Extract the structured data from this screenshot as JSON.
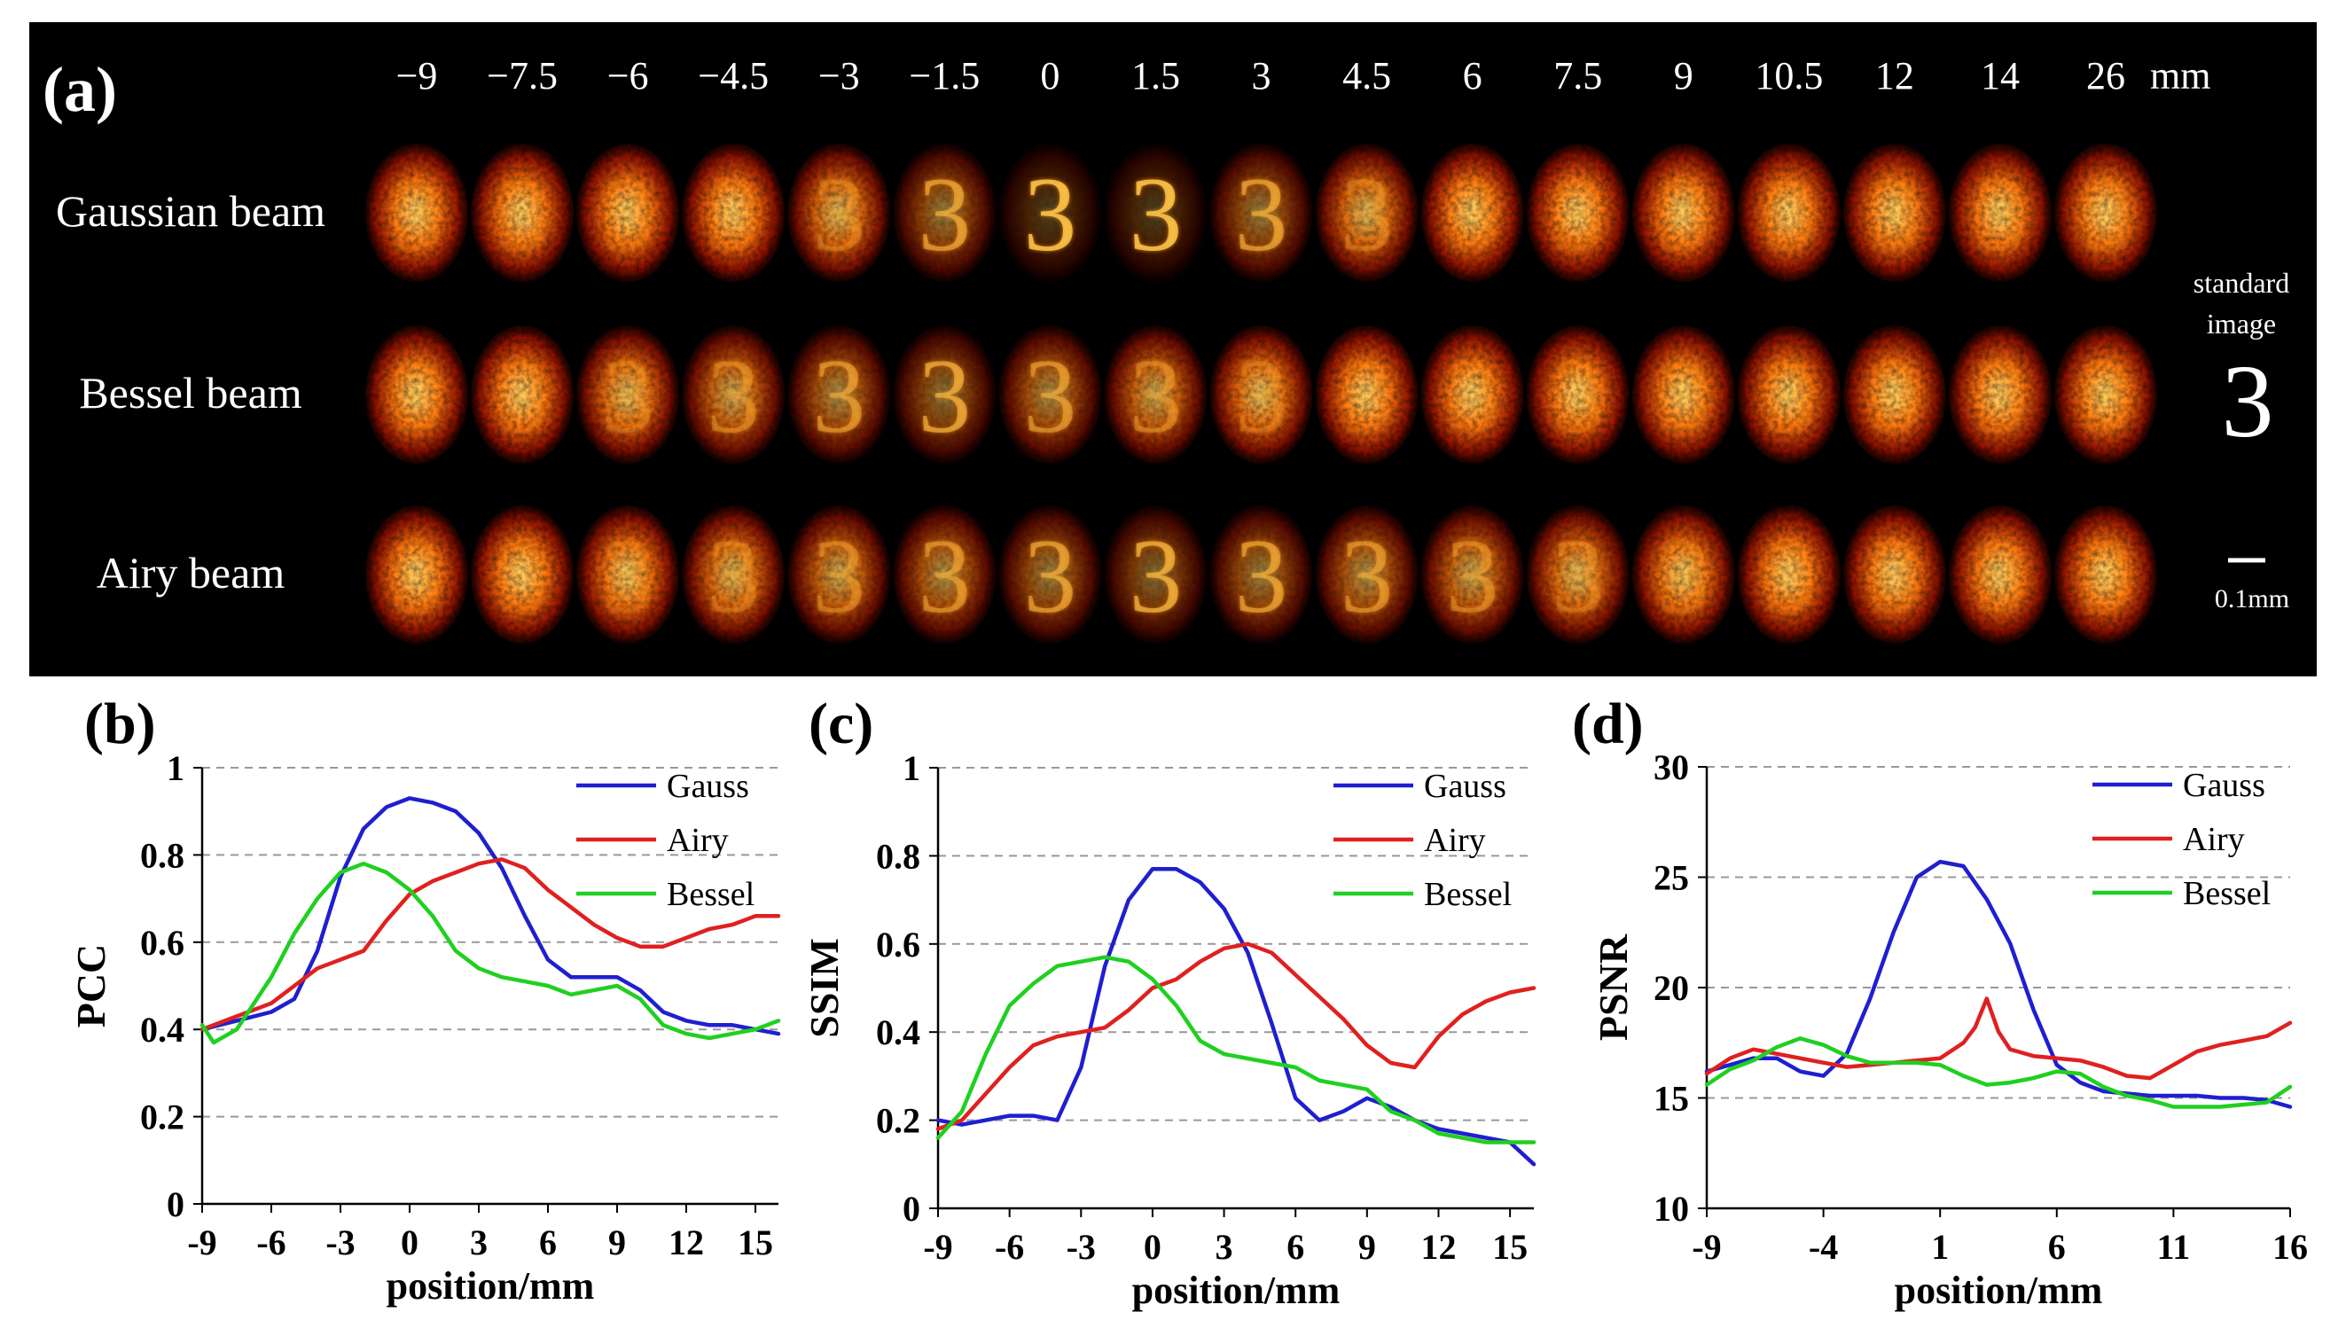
{
  "panel_a": {
    "label": "(a)",
    "positions": [
      "−9",
      "−7.5",
      "−6",
      "−4.5",
      "−3",
      "−1.5",
      "0",
      "1.5",
      "3",
      "4.5",
      "6",
      "7.5",
      "9",
      "10.5",
      "12",
      "14",
      "26"
    ],
    "unit": "mm",
    "rows": [
      "Gaussian beam",
      "Bessel beam",
      "Airy beam"
    ],
    "standard_label_1": "standard",
    "standard_label_2": "image",
    "standard_glyph": "3",
    "scale_bar_label": "0.1mm",
    "image_glyph": "3",
    "colors": {
      "background": "#000000",
      "hot_core": "#ffe070",
      "hot_mid": "#ff7a10",
      "hot_edge": "#b01500"
    }
  },
  "chart_data": [
    {
      "type": "line",
      "panel_label": "(b)",
      "xlabel": "position/mm",
      "ylabel": "PCC",
      "xlim": [
        -9,
        16
      ],
      "ylim": [
        0,
        1
      ],
      "xticks": [
        -9,
        -6,
        -3,
        0,
        3,
        6,
        9,
        12,
        15
      ],
      "yticks": [
        0,
        0.2,
        0.4,
        0.6,
        0.8,
        1
      ],
      "ytick_labels": [
        "0",
        "0.2",
        "0.4",
        "0.6",
        "0.8",
        "1"
      ],
      "grid": "horizontal dashed",
      "legend": "top-right",
      "series": [
        {
          "name": "Gauss",
          "color": "#1f1fd0",
          "x": [
            -9,
            -7.5,
            -6,
            -5,
            -4,
            -3,
            -2,
            -1,
            0,
            1,
            2,
            3,
            4,
            5,
            6,
            7,
            8,
            9,
            10,
            11,
            12,
            13,
            14,
            15,
            16
          ],
          "y": [
            0.4,
            0.42,
            0.44,
            0.47,
            0.58,
            0.75,
            0.86,
            0.91,
            0.93,
            0.92,
            0.9,
            0.85,
            0.77,
            0.66,
            0.56,
            0.52,
            0.52,
            0.52,
            0.49,
            0.44,
            0.42,
            0.41,
            0.41,
            0.4,
            0.39
          ]
        },
        {
          "name": "Airy",
          "color": "#e02020",
          "x": [
            -9,
            -7.5,
            -6,
            -5,
            -4,
            -3,
            -2,
            -1,
            0,
            1,
            2,
            3,
            4,
            5,
            6,
            7,
            8,
            9,
            10,
            11,
            12,
            13,
            14,
            15,
            16
          ],
          "y": [
            0.4,
            0.43,
            0.46,
            0.5,
            0.54,
            0.56,
            0.58,
            0.65,
            0.71,
            0.74,
            0.76,
            0.78,
            0.79,
            0.77,
            0.72,
            0.68,
            0.64,
            0.61,
            0.59,
            0.59,
            0.61,
            0.63,
            0.64,
            0.66,
            0.66
          ]
        },
        {
          "name": "Bessel",
          "color": "#20d020",
          "x": [
            -9,
            -8.5,
            -7.5,
            -6,
            -5,
            -4,
            -3,
            -2,
            -1,
            0,
            1,
            2,
            3,
            4,
            5,
            6,
            7,
            8,
            9,
            10,
            11,
            12,
            13,
            14,
            15,
            16
          ],
          "y": [
            0.41,
            0.37,
            0.4,
            0.52,
            0.62,
            0.7,
            0.76,
            0.78,
            0.76,
            0.72,
            0.66,
            0.58,
            0.54,
            0.52,
            0.51,
            0.5,
            0.48,
            0.49,
            0.5,
            0.47,
            0.41,
            0.39,
            0.38,
            0.39,
            0.4,
            0.42
          ]
        }
      ]
    },
    {
      "type": "line",
      "panel_label": "(c)",
      "xlabel": "position/mm",
      "ylabel": "SSIM",
      "xlim": [
        -9,
        16
      ],
      "ylim": [
        0,
        1
      ],
      "xticks": [
        -9,
        -6,
        -3,
        0,
        3,
        6,
        9,
        12,
        15
      ],
      "yticks": [
        0,
        0.2,
        0.4,
        0.6,
        0.8,
        1
      ],
      "ytick_labels": [
        "0",
        "0.2",
        "0.4",
        "0.6",
        "0.8",
        "1"
      ],
      "grid": "horizontal dashed",
      "legend": "top-right",
      "series": [
        {
          "name": "Gauss",
          "color": "#1f1fd0",
          "x": [
            -9,
            -8,
            -7,
            -6,
            -5,
            -4,
            -3,
            -2,
            -1,
            0,
            1,
            2,
            3,
            4,
            5,
            6,
            7,
            8,
            9,
            10,
            11,
            12,
            13,
            14,
            15,
            16
          ],
          "y": [
            0.2,
            0.19,
            0.2,
            0.21,
            0.21,
            0.2,
            0.32,
            0.55,
            0.7,
            0.77,
            0.77,
            0.74,
            0.68,
            0.58,
            0.42,
            0.25,
            0.2,
            0.22,
            0.25,
            0.23,
            0.2,
            0.18,
            0.17,
            0.16,
            0.15,
            0.1
          ]
        },
        {
          "name": "Airy",
          "color": "#e02020",
          "x": [
            -9,
            -8,
            -7,
            -6,
            -5,
            -4,
            -3,
            -2,
            -1,
            0,
            1,
            2,
            3,
            4,
            5,
            6,
            7,
            8,
            9,
            10,
            11,
            12,
            13,
            14,
            15,
            16
          ],
          "y": [
            0.18,
            0.2,
            0.26,
            0.32,
            0.37,
            0.39,
            0.4,
            0.41,
            0.45,
            0.5,
            0.52,
            0.56,
            0.59,
            0.6,
            0.58,
            0.53,
            0.48,
            0.43,
            0.37,
            0.33,
            0.32,
            0.39,
            0.44,
            0.47,
            0.49,
            0.5
          ]
        },
        {
          "name": "Bessel",
          "color": "#20d020",
          "x": [
            -9,
            -8,
            -7,
            -6,
            -5,
            -4,
            -3,
            -2,
            -1,
            0,
            1,
            2,
            3,
            4,
            5,
            6,
            7,
            8,
            9,
            10,
            11,
            12,
            13,
            14,
            15,
            16
          ],
          "y": [
            0.16,
            0.22,
            0.35,
            0.46,
            0.51,
            0.55,
            0.56,
            0.57,
            0.56,
            0.52,
            0.46,
            0.38,
            0.35,
            0.34,
            0.33,
            0.32,
            0.29,
            0.28,
            0.27,
            0.22,
            0.2,
            0.17,
            0.16,
            0.15,
            0.15,
            0.15
          ]
        }
      ]
    },
    {
      "type": "line",
      "panel_label": "(d)",
      "xlabel": "position/mm",
      "ylabel": "PSNR",
      "xlim": [
        -9,
        16
      ],
      "ylim": [
        10,
        30
      ],
      "xticks": [
        -9,
        -4,
        1,
        6,
        11,
        16
      ],
      "yticks": [
        10,
        15,
        20,
        25,
        30
      ],
      "ytick_labels": [
        "10",
        "15",
        "20",
        "25",
        "30"
      ],
      "grid": "horizontal dashed",
      "legend": "top-right",
      "series": [
        {
          "name": "Gauss",
          "color": "#1f1fd0",
          "x": [
            -9,
            -8,
            -7,
            -6,
            -5,
            -4,
            -3,
            -2,
            -1,
            0,
            1,
            2,
            3,
            4,
            5,
            6,
            7,
            8,
            9,
            10,
            11,
            12,
            13,
            14,
            15,
            16
          ],
          "y": [
            16.2,
            16.5,
            16.8,
            16.8,
            16.2,
            16,
            17,
            19.5,
            22.5,
            25,
            25.7,
            25.5,
            24,
            22,
            19,
            16.5,
            15.7,
            15.3,
            15.2,
            15.1,
            15.1,
            15.1,
            15,
            15,
            14.9,
            14.6
          ]
        },
        {
          "name": "Airy",
          "color": "#e02020",
          "x": [
            -9,
            -8,
            -7,
            -6,
            -5,
            -4,
            -3,
            -2,
            -1,
            0,
            1,
            2,
            2.5,
            3,
            3.5,
            4,
            5,
            6,
            7,
            8,
            9,
            10,
            11,
            12,
            13,
            14,
            15,
            16
          ],
          "y": [
            16.1,
            16.8,
            17.2,
            17,
            16.8,
            16.6,
            16.4,
            16.5,
            16.6,
            16.7,
            16.8,
            17.5,
            18.2,
            19.5,
            18,
            17.2,
            16.9,
            16.8,
            16.7,
            16.4,
            16,
            15.9,
            16.5,
            17.1,
            17.4,
            17.6,
            17.8,
            18.4
          ]
        },
        {
          "name": "Bessel",
          "color": "#20d020",
          "x": [
            -9,
            -8,
            -7,
            -6,
            -5,
            -4,
            -3,
            -2,
            -1,
            0,
            1,
            2,
            3,
            4,
            5,
            6,
            7,
            8,
            9,
            10,
            11,
            12,
            13,
            14,
            15,
            16
          ],
          "y": [
            15.6,
            16.3,
            16.7,
            17.3,
            17.7,
            17.4,
            16.9,
            16.6,
            16.6,
            16.6,
            16.5,
            16,
            15.6,
            15.7,
            15.9,
            16.2,
            16.1,
            15.5,
            15.1,
            14.9,
            14.6,
            14.6,
            14.6,
            14.7,
            14.8,
            15.5
          ]
        }
      ]
    }
  ]
}
